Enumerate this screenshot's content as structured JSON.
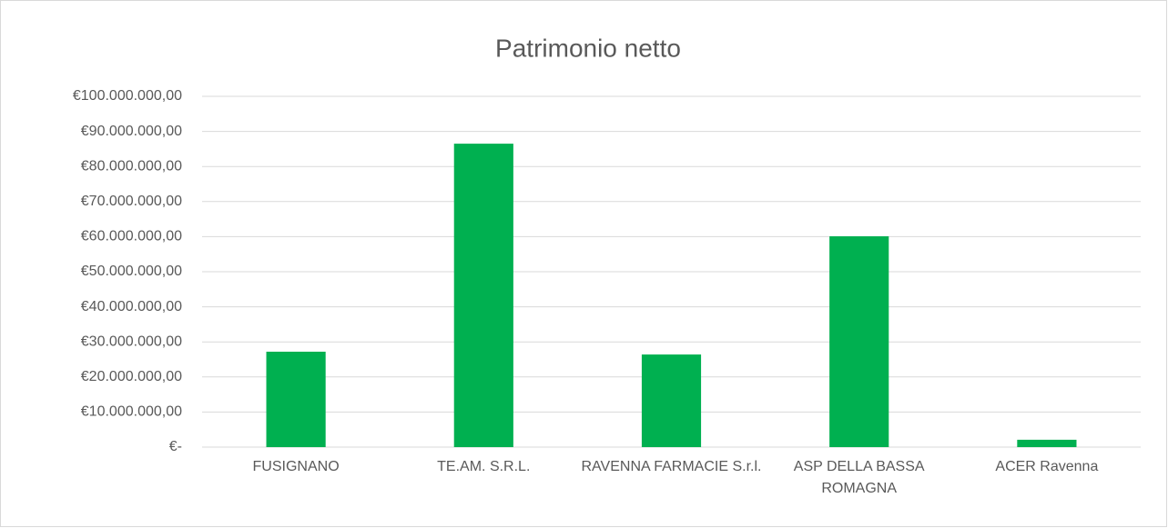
{
  "chart_data": {
    "type": "bar",
    "title": "Patrimonio netto",
    "categories": [
      "FUSIGNANO",
      "TE.AM. S.R.L.",
      "RAVENNA FARMACIE S.r.l.",
      "ASP DELLA BASSA ROMAGNA",
      "ACER Ravenna"
    ],
    "values": [
      27200000,
      86500000,
      26400000,
      60100000,
      2100000
    ],
    "color": "#00b050",
    "ylim": [
      0,
      100000000
    ],
    "yticks": [
      {
        "value": 0,
        "label": "€-"
      },
      {
        "value": 10000000,
        "label": "€10.000.000,00"
      },
      {
        "value": 20000000,
        "label": "€20.000.000,00"
      },
      {
        "value": 30000000,
        "label": "€30.000.000,00"
      },
      {
        "value": 40000000,
        "label": "€40.000.000,00"
      },
      {
        "value": 50000000,
        "label": "€50.000.000,00"
      },
      {
        "value": 60000000,
        "label": "€60.000.000,00"
      },
      {
        "value": 70000000,
        "label": "€70.000.000,00"
      },
      {
        "value": 80000000,
        "label": "€80.000.000,00"
      },
      {
        "value": 90000000,
        "label": "€90.000.000,00"
      },
      {
        "value": 100000000,
        "label": "€100.000.000,00"
      }
    ],
    "grid": true
  }
}
